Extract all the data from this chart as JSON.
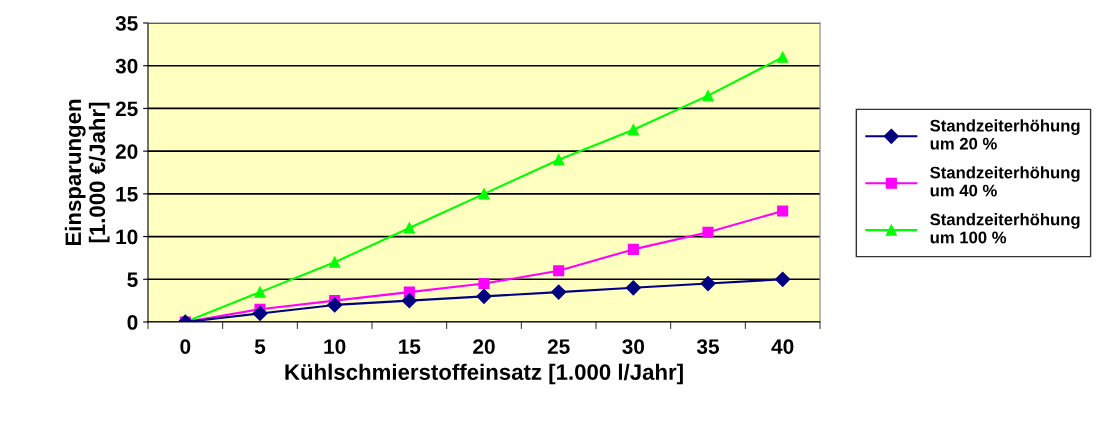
{
  "chart_data": {
    "type": "line",
    "xlabel": "Kühlschmierstoffeinsatz [1.000 l/Jahr]",
    "ylabel": "Einsparungen\n[1.000 €/Jahr]",
    "categories": [
      "0",
      "5",
      "10",
      "15",
      "20",
      "25",
      "30",
      "35",
      "40"
    ],
    "series": [
      {
        "name": "Standzeiterhöhung\num 20 %",
        "color": "#000080",
        "marker": "diamond",
        "values": [
          0,
          1,
          2,
          2.5,
          3,
          3.5,
          4,
          4.5,
          5
        ]
      },
      {
        "name": "Standzeiterhöhung\num 40 %",
        "color": "#ff00ff",
        "marker": "square",
        "values": [
          0,
          1.5,
          2.5,
          3.5,
          4.5,
          6,
          8.5,
          10.5,
          13
        ]
      },
      {
        "name": "Standzeiterhöhung\num 100 %",
        "color": "#00ff00",
        "marker": "triangle",
        "values": [
          0,
          3.5,
          7,
          11,
          15,
          19,
          22.5,
          26.5,
          31
        ]
      }
    ],
    "ylim": [
      0,
      35
    ],
    "yticks": [
      0,
      5,
      10,
      15,
      20,
      25,
      30,
      35
    ],
    "grid": "y",
    "legend": "right"
  }
}
